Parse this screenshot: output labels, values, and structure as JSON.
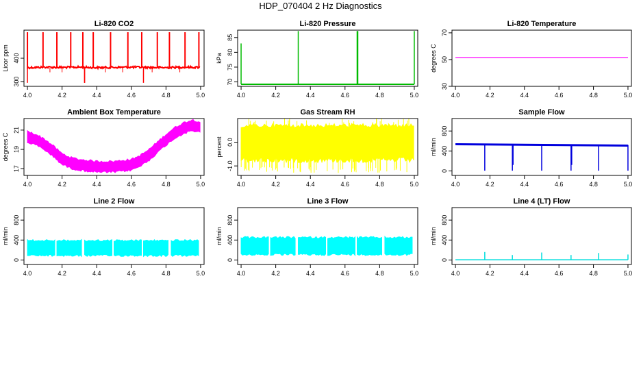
{
  "figure_title": "HDP_070404  2 Hz Diagnostics",
  "chart_data": [
    {
      "type": "line",
      "title": "Li-820 CO2",
      "ylabel": "Licor ppm",
      "color": "#ff0000",
      "xlim": [
        3.98,
        5.02
      ],
      "ylim": [
        280,
        520
      ],
      "xticks": [
        "4.0",
        "4.2",
        "4.4",
        "4.6",
        "4.8",
        "5.0"
      ],
      "yticks": [
        "300",
        "400"
      ],
      "ytick_values": [
        300,
        400
      ],
      "series": [
        {
          "x": [
            4.0,
            4.1,
            4.2,
            4.3,
            4.4,
            4.5,
            4.6,
            4.7,
            4.8,
            4.9,
            5.0
          ],
          "y": [
            360,
            362,
            361,
            362,
            360,
            361,
            362,
            361,
            360,
            362,
            361
          ]
        }
      ]
    },
    {
      "type": "line",
      "title": "Li-820 Pressure",
      "ylabel": "kPa",
      "color": "#00bb00",
      "xlim": [
        3.98,
        5.02
      ],
      "ylim": [
        68.5,
        87.5
      ],
      "xticks": [
        "4.0",
        "4.2",
        "4.4",
        "4.6",
        "4.8",
        "5.0"
      ],
      "yticks": [
        "70",
        "75",
        "80",
        "85"
      ],
      "ytick_values": [
        70,
        75,
        80,
        85
      ],
      "series": [
        {
          "x": [
            4.0,
            4.2,
            4.4,
            4.6,
            4.8,
            5.0
          ],
          "y": [
            69.2,
            69.2,
            69.2,
            69.2,
            69.2,
            69.2
          ]
        }
      ]
    },
    {
      "type": "line",
      "title": "Li-820 Temperature",
      "ylabel": "degrees C",
      "color": "#ff00ff",
      "xlim": [
        3.98,
        5.02
      ],
      "ylim": [
        30,
        72
      ],
      "xticks": [
        "4.0",
        "4.2",
        "4.4",
        "4.6",
        "4.8",
        "5.0"
      ],
      "yticks": [
        "30",
        "50",
        "70"
      ],
      "ytick_values": [
        30,
        50,
        70
      ],
      "series": [
        {
          "x": [
            4.0,
            5.0
          ],
          "y": [
            51.5,
            51.5
          ]
        }
      ]
    },
    {
      "type": "area",
      "title": "Ambient Box Temperature",
      "ylabel": "degrees C",
      "color": "#ff00ff",
      "xlim": [
        3.98,
        5.02
      ],
      "ylim": [
        16.3,
        22.2
      ],
      "xticks": [
        "4.0",
        "4.2",
        "4.4",
        "4.6",
        "4.8",
        "5.0"
      ],
      "yticks": [
        "17",
        "19",
        "21"
      ],
      "ytick_values": [
        17,
        19,
        21
      ],
      "series": [
        {
          "x": [
            4.0,
            4.05,
            4.1,
            4.15,
            4.2,
            4.25,
            4.3,
            4.35,
            4.4,
            4.45,
            4.5,
            4.55,
            4.6,
            4.65,
            4.7,
            4.75,
            4.8,
            4.85,
            4.9,
            4.95,
            5.0
          ],
          "y": [
            20.3,
            20.0,
            19.5,
            18.8,
            18.0,
            17.6,
            17.4,
            17.3,
            17.2,
            17.2,
            17.2,
            17.3,
            17.4,
            17.8,
            18.4,
            19.2,
            20.0,
            20.7,
            21.2,
            21.5,
            21.3
          ]
        }
      ]
    },
    {
      "type": "area",
      "title": "Gas Stream RH",
      "ylabel": "percent",
      "color": "#ffff00",
      "xlim": [
        3.98,
        5.02
      ],
      "ylim": [
        -1.4,
        1.0
      ],
      "xticks": [
        "4.0",
        "4.2",
        "4.4",
        "4.6",
        "4.8",
        "5.0"
      ],
      "yticks": [
        "-1.0",
        "0.0"
      ],
      "ytick_values": [
        -1.0,
        0.0
      ],
      "series": [
        {
          "x": [
            4.0,
            5.0
          ],
          "y": [
            0.0,
            0.0
          ]
        }
      ]
    },
    {
      "type": "line",
      "title": "Sample Flow",
      "ylabel": "ml/min",
      "color": "#0000dd",
      "xlim": [
        3.98,
        5.02
      ],
      "ylim": [
        -90,
        1050
      ],
      "xticks": [
        "4.0",
        "4.2",
        "4.4",
        "4.6",
        "4.8",
        "5.0"
      ],
      "yticks": [
        "0",
        "400",
        "800"
      ],
      "ytick_values": [
        0,
        400,
        800
      ],
      "series": [
        {
          "x": [
            4.0,
            4.5,
            5.0
          ],
          "y": [
            530,
            520,
            510
          ]
        }
      ]
    },
    {
      "type": "area",
      "title": "Line 2 Flow",
      "ylabel": "ml/min",
      "color": "#00ffff",
      "xlim": [
        3.98,
        5.02
      ],
      "ylim": [
        -90,
        1050
      ],
      "xticks": [
        "4.0",
        "4.2",
        "4.4",
        "4.6",
        "4.8",
        "5.0"
      ],
      "yticks": [
        "0",
        "400",
        "800"
      ],
      "ytick_values": [
        0,
        400,
        800
      ],
      "series": [
        {
          "x": [
            4.0,
            5.0
          ],
          "y": [
            250,
            250
          ]
        }
      ]
    },
    {
      "type": "area",
      "title": "Line 3 Flow",
      "ylabel": "ml/min",
      "color": "#00ffff",
      "xlim": [
        3.98,
        5.02
      ],
      "ylim": [
        -90,
        1050
      ],
      "xticks": [
        "4.0",
        "4.2",
        "4.4",
        "4.6",
        "4.8",
        "5.0"
      ],
      "yticks": [
        "0",
        "400",
        "800"
      ],
      "ytick_values": [
        0,
        400,
        800
      ],
      "series": [
        {
          "x": [
            4.0,
            5.0
          ],
          "y": [
            300,
            300
          ]
        }
      ]
    },
    {
      "type": "line",
      "title": "Line 4 (LT) Flow",
      "ylabel": "ml/min",
      "color": "#00dddd",
      "xlim": [
        3.98,
        5.02
      ],
      "ylim": [
        -90,
        1050
      ],
      "xticks": [
        "4.0",
        "4.2",
        "4.4",
        "4.6",
        "4.8",
        "5.0"
      ],
      "yticks": [
        "0",
        "400",
        "800"
      ],
      "ytick_values": [
        0,
        400,
        800
      ],
      "series": [
        {
          "x": [
            4.0,
            5.0
          ],
          "y": [
            5,
            5
          ]
        }
      ]
    }
  ]
}
